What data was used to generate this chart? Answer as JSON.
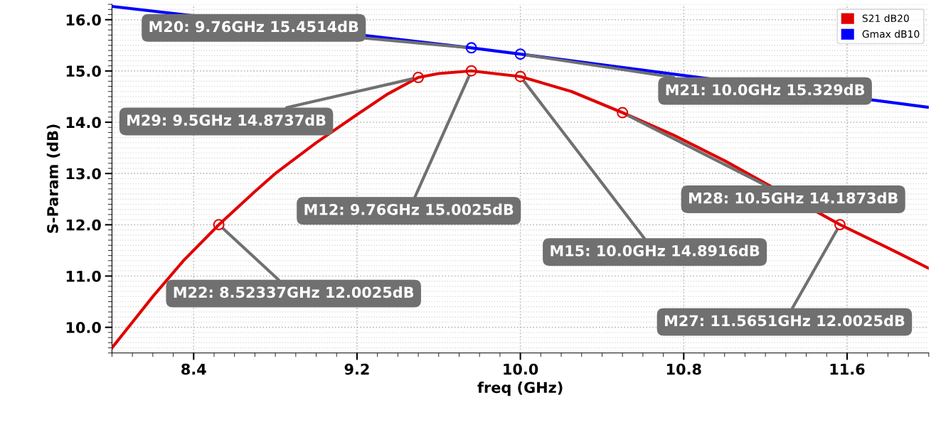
{
  "chart_data": {
    "type": "line",
    "xlabel": "freq (GHz)",
    "ylabel": "S-Param (dB)",
    "xlim": [
      8.0,
      12.0
    ],
    "xticks": [
      8.4,
      9.2,
      {
        "value": 10,
        "label": "10.0"
      },
      10.8,
      11.6
    ],
    "ylim": [
      9.5,
      16.3
    ],
    "yticks": [
      {
        "value": 10,
        "label": "10.0"
      },
      {
        "value": 11,
        "label": "11.0"
      },
      {
        "value": 12,
        "label": "12.0"
      },
      {
        "value": 13,
        "label": "13.0"
      },
      {
        "value": 14,
        "label": "14.0"
      },
      {
        "value": 15,
        "label": "15.0"
      },
      {
        "value": 16,
        "label": "16.0"
      }
    ],
    "grid": true,
    "legend": "top right",
    "line_style": "solid",
    "series": [
      {
        "name": "S21 dB20",
        "color": "#e00000",
        "x": [
          8.0,
          8.1,
          8.2,
          8.35,
          8.52337,
          8.7,
          8.8,
          9.0,
          9.2,
          9.35,
          9.5,
          9.6,
          9.76,
          10.0,
          10.25,
          10.5,
          10.75,
          11.0,
          11.5651,
          11.8,
          12.0
        ],
        "values": [
          9.6,
          10.1,
          10.6,
          11.3,
          12.0025,
          12.65,
          13.0,
          13.6,
          14.15,
          14.55,
          14.8737,
          14.95,
          15.0025,
          14.8916,
          14.6,
          14.1873,
          13.75,
          13.25,
          12.0025,
          11.55,
          11.15
        ]
      },
      {
        "name": "Gmax dB10",
        "color": "#0000ff",
        "x": [
          8.0,
          9.76,
          10.0,
          12.0
        ],
        "values": [
          16.26,
          15.4514,
          15.329,
          14.29
        ]
      }
    ],
    "annotations": [
      {
        "text": "M20: 9.76GHz 15.4514dB",
        "x": 9.76,
        "y": 15.4514
      },
      {
        "text": "M21: 10.0GHz 15.329dB",
        "x": 10.0,
        "y": 15.329
      },
      {
        "text": "M29: 9.5GHz 14.8737dB",
        "x": 9.5,
        "y": 14.8737
      },
      {
        "text": "M12: 9.76GHz 15.0025dB",
        "x": 9.76,
        "y": 15.0025
      },
      {
        "text": "M15: 10.0GHz 14.8916dB",
        "x": 10.0,
        "y": 14.8916
      },
      {
        "text": "M28: 10.5GHz 14.1873dB",
        "x": 10.5,
        "y": 14.1873
      },
      {
        "text": "M22: 8.52337GHz 12.0025dB",
        "x": 8.52337,
        "y": 12.0025
      },
      {
        "text": "M27: 11.5651GHz 12.0025dB",
        "x": 11.5651,
        "y": 12.0025
      }
    ]
  }
}
